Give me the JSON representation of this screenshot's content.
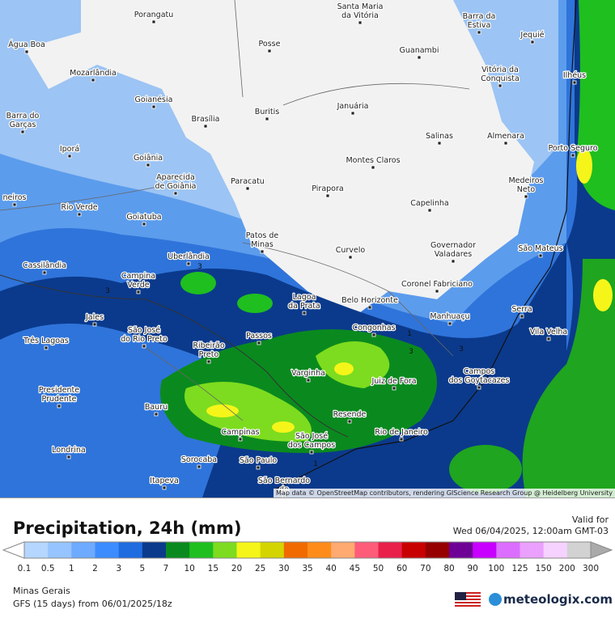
{
  "map": {
    "cities": [
      [
        "Água Boa"
      ],
      [
        "Porangatu"
      ],
      [
        "Santa Maria",
        "da Vitória"
      ],
      [
        "Barra da",
        "Estiva"
      ],
      [
        "Posse"
      ],
      [
        "Guanambi"
      ],
      [
        "Jequié"
      ],
      [
        "Mozarlândia"
      ],
      [
        "Vitória da",
        "Conquista"
      ],
      [
        "Ilhéus"
      ],
      [
        "Goianésia"
      ],
      [
        "Brasília"
      ],
      [
        "Buritis"
      ],
      [
        "Januária"
      ],
      [
        "Barra do",
        "Garças"
      ],
      [
        "Salinas"
      ],
      [
        "Almenara"
      ],
      [
        "Porto Seguro"
      ],
      [
        "Iporá"
      ],
      [
        "Goiânia"
      ],
      [
        "Montes Claros"
      ],
      [
        "Aparecida",
        "de Goiânia"
      ],
      [
        "Paracatu"
      ],
      [
        "Pirapora"
      ],
      [
        "Medeiros",
        "Neto"
      ],
      [
        "neiros"
      ],
      [
        "Capelinha"
      ],
      [
        "Rio Verde"
      ],
      [
        "Goiatuba"
      ],
      [
        "Patos de",
        "Minas"
      ],
      [
        "Governador",
        "Valadares"
      ],
      [
        "São Mateus"
      ],
      [
        "Curvelo"
      ],
      [
        "Uberlândia"
      ],
      [
        "Cassilândia"
      ],
      [
        "Campina",
        "Verde"
      ],
      [
        "Coronel Fabriciano"
      ],
      [
        "Lagoa",
        "da Prata"
      ],
      [
        "Belo Horizonte"
      ],
      [
        "Serra"
      ],
      [
        "Manhuaçu"
      ],
      [
        "Jales"
      ],
      [
        "São José",
        "do Rio Preto"
      ],
      [
        "Congonhas"
      ],
      [
        "Vila Velha"
      ],
      [
        "Passos"
      ],
      [
        "Três Lagoas"
      ],
      [
        "Ribeirão",
        "Preto"
      ],
      [
        "Campos",
        "dos Goytacazes"
      ],
      [
        "Varginha"
      ],
      [
        "Juiz de Fora"
      ],
      [
        "Presidente",
        "Prudente"
      ],
      [
        "Bauru"
      ],
      [
        "Resende"
      ],
      [
        "Campinas"
      ],
      [
        "São José",
        "dos Campos"
      ],
      [
        "Rio de Janeiro"
      ],
      [
        "Londrina"
      ],
      [
        "Sorocaba"
      ],
      [
        "São Paulo"
      ],
      [
        "Itapeva"
      ],
      [
        "São Bernardo",
        "do"
      ]
    ],
    "contour_labels": [
      "3",
      "3",
      "3",
      "3",
      "1",
      "1"
    ],
    "attribution": "Map data © OpenStreetMap contributors, rendering GIScience Research Group @ Heidelberg University"
  },
  "panel": {
    "title": "Precipitation, 24h (mm)",
    "valid_label": "Valid for",
    "valid_time": "Wed 06/04/2025, 12:00am GMT-03",
    "scale_values": [
      0.1,
      0.5,
      1,
      2,
      3,
      5,
      7,
      10,
      15,
      20,
      25,
      30,
      35,
      40,
      45,
      50,
      60,
      70,
      80,
      90,
      100,
      125,
      150,
      200,
      300
    ],
    "scale_colors": [
      "#b4d6ff",
      "#96c4ff",
      "#6eaaff",
      "#3c8cff",
      "#1f6be0",
      "#0b3a8c",
      "#0a8a1e",
      "#1fbf1f",
      "#7ddc1f",
      "#f5f51a",
      "#d4d400",
      "#f06a00",
      "#ff8c1a",
      "#ffaa70",
      "#ff5c7a",
      "#e8204a",
      "#c80000",
      "#960000",
      "#6e0096",
      "#c800ff",
      "#dc6eff",
      "#eba0ff",
      "#f5d2ff",
      "#d2d2d2"
    ],
    "region": "Minas Gerais",
    "model": "GFS (15 days) from 06/01/2025/18z",
    "brand": "meteologix.com"
  }
}
